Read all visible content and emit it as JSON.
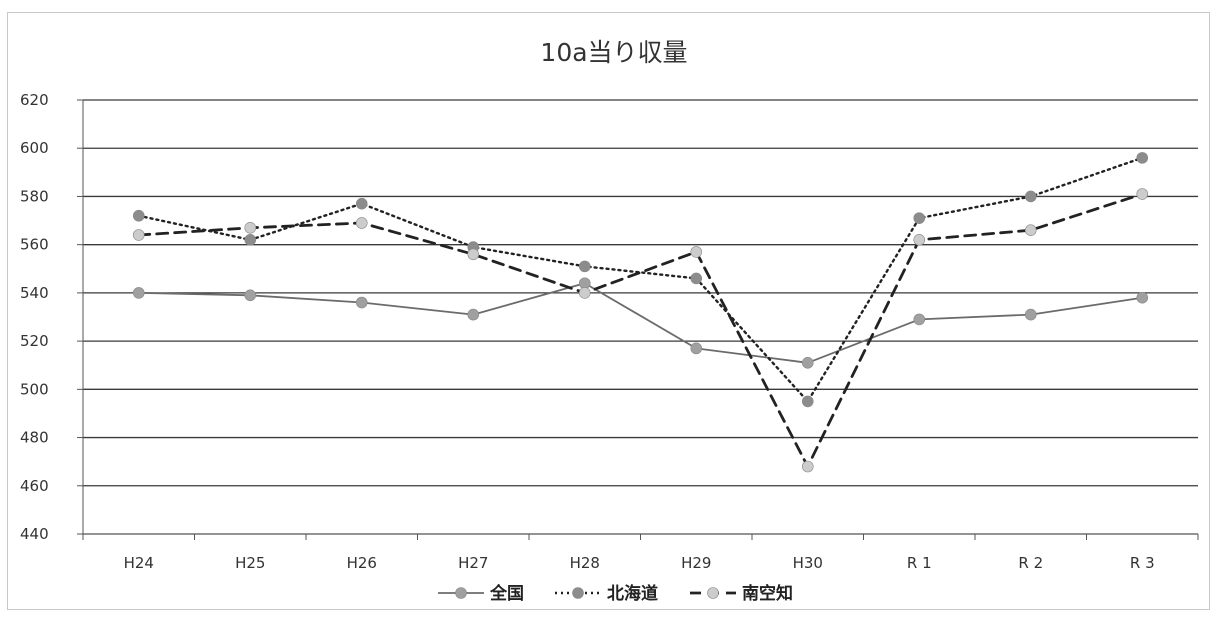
{
  "chart_data": {
    "type": "line",
    "title": "10a当り収量",
    "categories": [
      "H24",
      "H25",
      "H26",
      "H27",
      "H28",
      "H29",
      "H30",
      "R 1",
      "R 2",
      "R 3"
    ],
    "ylim": [
      440,
      620
    ],
    "yticks": [
      440,
      460,
      480,
      500,
      520,
      540,
      560,
      580,
      600,
      620
    ],
    "grid": true,
    "legend_position": "bottom",
    "series": [
      {
        "name": "全国",
        "values": [
          540,
          539,
          536,
          531,
          544,
          517,
          511,
          529,
          531,
          538
        ],
        "line_color": "#6b6b6b",
        "marker_color": "#a0a0a0",
        "dash": "solid"
      },
      {
        "name": "北海道",
        "values": [
          572,
          562,
          577,
          559,
          551,
          546,
          495,
          571,
          580,
          596
        ],
        "line_color": "#222222",
        "marker_color": "#8c8c8c",
        "dash": "dotted"
      },
      {
        "name": "南空知",
        "values": [
          564,
          567,
          569,
          556,
          540,
          557,
          468,
          562,
          566,
          581
        ],
        "line_color": "#222222",
        "marker_color": "#cccccc",
        "dash": "dashed"
      }
    ]
  }
}
